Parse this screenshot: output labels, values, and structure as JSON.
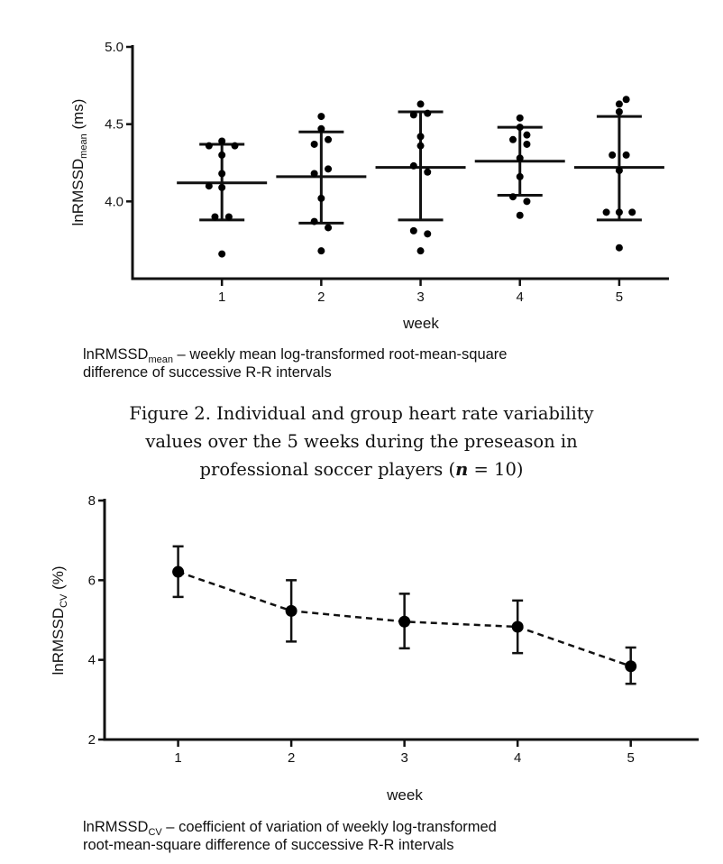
{
  "chart_data": [
    {
      "type": "scatter",
      "subtype": "individual points with mean ± SD",
      "xlabel": "week",
      "ylabel": {
        "main": "lnRMSSD",
        "sub": "mean",
        "unit": " (ms)"
      },
      "categories": [
        "1",
        "2",
        "3",
        "4",
        "5"
      ],
      "yticks": [
        "5.0",
        "4.5",
        "4.0"
      ],
      "ytick_values": [
        5.0,
        4.5,
        4.0
      ],
      "ylim": [
        3.5,
        5.0
      ],
      "xlim": [
        0.1,
        5.5
      ],
      "grid": false,
      "series": [
        {
          "week": 1,
          "mean": 4.12,
          "sd_upper": 4.37,
          "sd_lower": 3.88,
          "points": [
            [
              1,
              4.39
            ],
            [
              0.87,
              4.36
            ],
            [
              1.13,
              4.36
            ],
            [
              1,
              4.3
            ],
            [
              1,
              4.18
            ],
            [
              0.87,
              4.1
            ],
            [
              1,
              4.09
            ],
            [
              0.93,
              3.9
            ],
            [
              1.07,
              3.9
            ],
            [
              1,
              3.66
            ]
          ]
        },
        {
          "week": 2,
          "mean": 4.16,
          "sd_upper": 4.45,
          "sd_lower": 3.86,
          "points": [
            [
              2,
              4.55
            ],
            [
              2,
              4.47
            ],
            [
              2.07,
              4.4
            ],
            [
              1.93,
              4.37
            ],
            [
              2.07,
              4.21
            ],
            [
              1.93,
              4.18
            ],
            [
              2,
              4.02
            ],
            [
              1.93,
              3.87
            ],
            [
              2.07,
              3.83
            ],
            [
              2,
              3.68
            ]
          ]
        },
        {
          "week": 3,
          "mean": 4.22,
          "sd_upper": 4.58,
          "sd_lower": 3.88,
          "points": [
            [
              3,
              4.63
            ],
            [
              2.93,
              4.56
            ],
            [
              3.07,
              4.57
            ],
            [
              3,
              4.42
            ],
            [
              3,
              4.36
            ],
            [
              2.93,
              4.23
            ],
            [
              3.07,
              4.19
            ],
            [
              2.93,
              3.81
            ],
            [
              3.07,
              3.79
            ],
            [
              3,
              3.68
            ]
          ]
        },
        {
          "week": 4,
          "mean": 4.26,
          "sd_upper": 4.48,
          "sd_lower": 4.04,
          "points": [
            [
              4,
              4.54
            ],
            [
              4,
              4.48
            ],
            [
              3.93,
              4.4
            ],
            [
              4.07,
              4.43
            ],
            [
              4.07,
              4.37
            ],
            [
              4,
              4.28
            ],
            [
              4,
              4.16
            ],
            [
              3.93,
              4.03
            ],
            [
              4.07,
              4.0
            ],
            [
              4,
              3.91
            ]
          ]
        },
        {
          "week": 5,
          "mean": 4.22,
          "sd_upper": 4.55,
          "sd_lower": 3.88,
          "points": [
            [
              5.07,
              4.66
            ],
            [
              5,
              4.63
            ],
            [
              5,
              4.58
            ],
            [
              4.93,
              4.3
            ],
            [
              5.07,
              4.3
            ],
            [
              5,
              4.2
            ],
            [
              4.87,
              3.93
            ],
            [
              5,
              3.93
            ],
            [
              5.13,
              3.93
            ],
            [
              5,
              3.7
            ]
          ]
        }
      ]
    },
    {
      "type": "line",
      "subtype": "mean with error bars, dashed",
      "xlabel": "week",
      "ylabel": {
        "main": "lnRMSSD",
        "sub": "CV",
        "unit": " (%)"
      },
      "categories": [
        "1",
        "2",
        "3",
        "4",
        "5"
      ],
      "yticks": [
        "8",
        "6",
        "4",
        "2"
      ],
      "ytick_values": [
        8,
        6,
        4,
        2
      ],
      "ylim": [
        2,
        8
      ],
      "xlim": [
        0.35,
        5.6
      ],
      "grid": false,
      "series": [
        {
          "name": "lnRMSSDCV",
          "values": [
            6.21,
            5.23,
            4.96,
            4.83,
            3.84
          ],
          "upper": [
            6.85,
            6.0,
            5.66,
            5.49,
            4.31
          ],
          "lower": [
            5.58,
            4.46,
            4.29,
            4.17,
            3.4
          ]
        }
      ]
    }
  ],
  "captions": {
    "top": {
      "main": "lnRMSSD",
      "sub": "mean",
      "line1": " – weekly mean log-transformed root-mean-square",
      "line2": "difference of successive R-R intervals"
    },
    "bottom": {
      "main": "lnRMSSD",
      "sub": "CV",
      "line1": " – coefficient of variation of weekly log-transformed",
      "line2": "root-mean-square difference of successive R-R intervals"
    }
  },
  "figure_title": {
    "line1": "Figure 2. Individual and group heart rate variability",
    "line2": "values over the 5 weeks during the preseason in",
    "line3a": "professional soccer players (",
    "line3n": "n",
    "line3b": " = 10)"
  }
}
